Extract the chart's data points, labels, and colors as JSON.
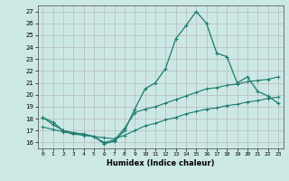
{
  "xlabel": "Humidex (Indice chaleur)",
  "bg_color": "#cce8e4",
  "grid_color": "#b0b0b0",
  "line_color": "#1a7a6e",
  "xlim": [
    -0.5,
    23.5
  ],
  "ylim": [
    15.5,
    27.5
  ],
  "xticks": [
    0,
    1,
    2,
    3,
    4,
    5,
    6,
    7,
    8,
    9,
    10,
    11,
    12,
    13,
    14,
    15,
    16,
    17,
    18,
    19,
    20,
    21,
    22,
    23
  ],
  "yticks": [
    16,
    17,
    18,
    19,
    20,
    21,
    22,
    23,
    24,
    25,
    26,
    27
  ],
  "series1_x": [
    0,
    1,
    2,
    3,
    4,
    5,
    6,
    7,
    8,
    9,
    10,
    11,
    12,
    13,
    14,
    15,
    16,
    17,
    18,
    19,
    20,
    21,
    22,
    23
  ],
  "series1_y": [
    18.1,
    17.7,
    17.0,
    16.8,
    16.7,
    16.5,
    15.9,
    16.1,
    17.0,
    18.8,
    20.5,
    21.0,
    22.2,
    24.7,
    25.8,
    27.0,
    26.0,
    23.5,
    23.2,
    21.0,
    21.5,
    20.3,
    19.9,
    19.3
  ],
  "series2_x": [
    0,
    1,
    2,
    3,
    4,
    5,
    6,
    7,
    8,
    9,
    10,
    11,
    12,
    13,
    14,
    15,
    16,
    17,
    18,
    19,
    20,
    21,
    22,
    23
  ],
  "series2_y": [
    18.1,
    17.5,
    17.0,
    16.8,
    16.7,
    16.5,
    16.0,
    16.2,
    17.2,
    18.5,
    18.8,
    19.0,
    19.3,
    19.6,
    19.9,
    20.2,
    20.5,
    20.6,
    20.8,
    20.9,
    21.1,
    21.2,
    21.3,
    21.5
  ],
  "series3_x": [
    0,
    1,
    2,
    3,
    4,
    5,
    6,
    7,
    8,
    9,
    10,
    11,
    12,
    13,
    14,
    15,
    16,
    17,
    18,
    19,
    20,
    21,
    22,
    23
  ],
  "series3_y": [
    17.3,
    17.1,
    16.9,
    16.7,
    16.6,
    16.5,
    16.4,
    16.3,
    16.6,
    17.0,
    17.4,
    17.6,
    17.9,
    18.1,
    18.4,
    18.6,
    18.8,
    18.9,
    19.1,
    19.2,
    19.4,
    19.5,
    19.7,
    19.8
  ]
}
